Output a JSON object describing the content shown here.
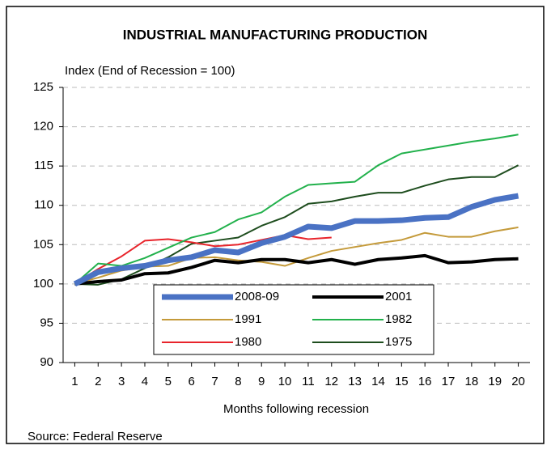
{
  "chart_data": {
    "type": "line",
    "title": "INDUSTRIAL MANUFACTURING PRODUCTION",
    "subtitle": "Index (End of Recession = 100)",
    "x_label": "Months following recession",
    "source": "Source: Federal Reserve",
    "x": [
      1,
      2,
      3,
      4,
      5,
      6,
      7,
      8,
      9,
      10,
      11,
      12,
      13,
      14,
      15,
      16,
      17,
      18,
      19,
      20
    ],
    "xlim": [
      0.5,
      20.5
    ],
    "xticks": [
      1,
      2,
      3,
      4,
      5,
      6,
      7,
      8,
      9,
      10,
      11,
      12,
      13,
      14,
      15,
      16,
      17,
      18,
      19,
      20
    ],
    "ylim": [
      90,
      125
    ],
    "yticks": [
      90,
      95,
      100,
      105,
      110,
      115,
      120,
      125
    ],
    "grid": true,
    "legend": "bottom-center",
    "series": [
      {
        "name": "2008-09",
        "color": "#4a72c4",
        "width": 7,
        "values": [
          100,
          101.5,
          102,
          102.3,
          103,
          103.4,
          104.3,
          104,
          105.2,
          106,
          107.3,
          107.1,
          108,
          108,
          108.1,
          108.4,
          108.5,
          109.8,
          110.7,
          111.2
        ]
      },
      {
        "name": "2001",
        "color": "#000000",
        "width": 4,
        "values": [
          100,
          100.3,
          100.5,
          101.3,
          101.4,
          102.1,
          103,
          102.7,
          103.1,
          103.1,
          102.7,
          103.1,
          102.5,
          103.1,
          103.3,
          103.6,
          102.7,
          102.8,
          103.1,
          103.2
        ]
      },
      {
        "name": "1991",
        "color": "#c49a3a",
        "width": 2,
        "values": [
          100,
          100.8,
          101.7,
          102.2,
          102.3,
          103.3,
          103.4,
          103,
          102.8,
          102.3,
          103.3,
          104.2,
          104.7,
          105.2,
          105.6,
          106.5,
          106,
          106,
          106.7,
          107.2
        ]
      },
      {
        "name": "1982",
        "color": "#22b14c",
        "width": 2,
        "values": [
          100,
          102.6,
          102.3,
          103.3,
          104.6,
          105.9,
          106.6,
          108.2,
          109.1,
          111.1,
          112.6,
          112.8,
          113,
          115.1,
          116.6,
          117.1,
          117.6,
          118.1,
          118.5,
          119
        ]
      },
      {
        "name": "1980",
        "color": "#e8242b",
        "width": 2,
        "values": [
          100,
          101.9,
          103.5,
          105.5,
          105.7,
          105.3,
          104.8,
          105,
          105.6,
          106.2,
          105.7,
          105.9,
          null,
          null,
          null,
          null,
          null,
          null,
          null,
          null
        ]
      },
      {
        "name": "1975",
        "color": "#1e4d1e",
        "width": 2,
        "values": [
          100,
          99.9,
          100.6,
          102,
          103.4,
          105.1,
          105.5,
          105.9,
          107.4,
          108.5,
          110.2,
          110.5,
          111.1,
          111.6,
          111.6,
          112.5,
          113.3,
          113.6,
          113.6,
          115.1
        ]
      }
    ]
  }
}
